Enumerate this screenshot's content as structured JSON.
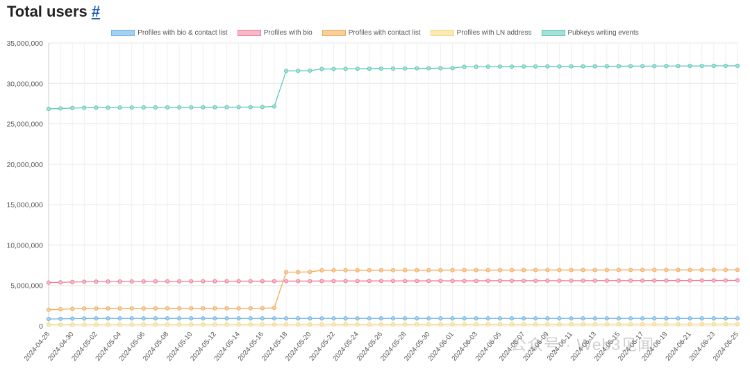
{
  "heading": {
    "title": "Total users",
    "anchor": "#"
  },
  "watermark": "公众号 · Web3见闻",
  "chart_data": {
    "type": "line",
    "title": "",
    "xlabel": "",
    "ylabel": "",
    "ylim": [
      0,
      35000000
    ],
    "yticks": [
      0,
      5000000,
      10000000,
      15000000,
      20000000,
      25000000,
      30000000,
      35000000
    ],
    "ytick_labels": [
      "0",
      "5,000,000",
      "10,000,000",
      "15,000,000",
      "20,000,000",
      "25,000,000",
      "30,000,000",
      "35,000,000"
    ],
    "x_tick_labels": [
      "2024-04-28",
      "2024-04-30",
      "2024-05-02",
      "2024-05-04",
      "2024-05-06",
      "2024-05-08",
      "2024-05-10",
      "2024-05-12",
      "2024-05-14",
      "2024-05-16",
      "2024-05-18",
      "2024-05-20",
      "2024-05-22",
      "2024-05-24",
      "2024-05-26",
      "2024-05-28",
      "2024-05-30",
      "2024-06-01",
      "2024-06-03",
      "2024-06-05",
      "2024-06-07",
      "2024-06-09",
      "2024-06-11",
      "2024-06-13",
      "2024-06-15",
      "2024-06-17",
      "2024-06-19",
      "2024-06-21",
      "2024-06-23",
      "2024-06-25"
    ],
    "categories": [
      "2024-04-28",
      "2024-04-29",
      "2024-04-30",
      "2024-05-01",
      "2024-05-02",
      "2024-05-03",
      "2024-05-04",
      "2024-05-05",
      "2024-05-06",
      "2024-05-07",
      "2024-05-08",
      "2024-05-09",
      "2024-05-10",
      "2024-05-11",
      "2024-05-12",
      "2024-05-13",
      "2024-05-14",
      "2024-05-15",
      "2024-05-16",
      "2024-05-17",
      "2024-05-18",
      "2024-05-19",
      "2024-05-20",
      "2024-05-21",
      "2024-05-22",
      "2024-05-23",
      "2024-05-24",
      "2024-05-25",
      "2024-05-26",
      "2024-05-27",
      "2024-05-28",
      "2024-05-29",
      "2024-05-30",
      "2024-05-31",
      "2024-06-01",
      "2024-06-02",
      "2024-06-03",
      "2024-06-04",
      "2024-06-05",
      "2024-06-06",
      "2024-06-07",
      "2024-06-08",
      "2024-06-09",
      "2024-06-10",
      "2024-06-11",
      "2024-06-12",
      "2024-06-13",
      "2024-06-14",
      "2024-06-15",
      "2024-06-16",
      "2024-06-17",
      "2024-06-18",
      "2024-06-19",
      "2024-06-20",
      "2024-06-21",
      "2024-06-22",
      "2024-06-23",
      "2024-06-24",
      "2024-06-25"
    ],
    "series": [
      {
        "name": "Profiles with bio & contact list",
        "color": "#6fb4e6",
        "fill": "#a6d0f0",
        "values": [
          850000,
          870000,
          900000,
          910000,
          920000,
          920000,
          920000,
          920000,
          920000,
          920000,
          920000,
          920000,
          920000,
          920000,
          920000,
          920000,
          920000,
          920000,
          920000,
          920000,
          920000,
          920000,
          920000,
          920000,
          920000,
          920000,
          920000,
          920000,
          920000,
          920000,
          920000,
          920000,
          920000,
          920000,
          920000,
          920000,
          920000,
          920000,
          920000,
          920000,
          920000,
          920000,
          920000,
          920000,
          920000,
          920000,
          920000,
          920000,
          920000,
          920000,
          920000,
          920000,
          920000,
          920000,
          920000,
          920000,
          920000,
          920000,
          920000
        ]
      },
      {
        "name": "Profiles with bio",
        "color": "#ee7c97",
        "fill": "#f8b8c8",
        "values": [
          5350000,
          5380000,
          5420000,
          5450000,
          5470000,
          5480000,
          5490000,
          5500000,
          5500000,
          5510000,
          5510000,
          5510000,
          5520000,
          5520000,
          5520000,
          5520000,
          5530000,
          5530000,
          5530000,
          5530000,
          5540000,
          5540000,
          5540000,
          5550000,
          5550000,
          5550000,
          5550000,
          5560000,
          5560000,
          5560000,
          5560000,
          5560000,
          5570000,
          5570000,
          5570000,
          5570000,
          5570000,
          5580000,
          5580000,
          5580000,
          5580000,
          5580000,
          5590000,
          5590000,
          5590000,
          5590000,
          5600000,
          5600000,
          5600000,
          5600000,
          5600000,
          5610000,
          5610000,
          5610000,
          5610000,
          5620000,
          5620000,
          5620000,
          5630000
        ]
      },
      {
        "name": "Profiles with contact list",
        "color": "#f2a95b",
        "fill": "#f8cf9c",
        "values": [
          2000000,
          2050000,
          2100000,
          2150000,
          2150000,
          2160000,
          2160000,
          2160000,
          2160000,
          2160000,
          2170000,
          2170000,
          2170000,
          2170000,
          2170000,
          2170000,
          2170000,
          2180000,
          2180000,
          2230000,
          6650000,
          6650000,
          6680000,
          6870000,
          6880000,
          6880000,
          6880000,
          6890000,
          6890000,
          6890000,
          6890000,
          6890000,
          6890000,
          6890000,
          6900000,
          6900000,
          6900000,
          6900000,
          6900000,
          6900000,
          6900000,
          6910000,
          6910000,
          6910000,
          6910000,
          6910000,
          6910000,
          6910000,
          6920000,
          6920000,
          6920000,
          6920000,
          6920000,
          6920000,
          6920000,
          6930000,
          6930000,
          6930000,
          6930000
        ]
      },
      {
        "name": "Profiles with LN address",
        "color": "#f5d77a",
        "fill": "#fbeab8",
        "values": [
          150000,
          150000,
          160000,
          160000,
          160000,
          160000,
          160000,
          160000,
          170000,
          170000,
          170000,
          170000,
          170000,
          170000,
          170000,
          170000,
          180000,
          180000,
          180000,
          180000,
          180000,
          180000,
          180000,
          180000,
          190000,
          190000,
          190000,
          190000,
          190000,
          190000,
          190000,
          190000,
          190000,
          200000,
          200000,
          200000,
          200000,
          200000,
          200000,
          200000,
          200000,
          200000,
          200000,
          200000,
          210000,
          210000,
          210000,
          210000,
          210000,
          210000,
          210000,
          210000,
          210000,
          210000,
          210000,
          220000,
          220000,
          220000,
          220000
        ]
      },
      {
        "name": "Pubkeys writing events",
        "color": "#5cc7b9",
        "fill": "#a6e0d8",
        "values": [
          26850000,
          26900000,
          26950000,
          26980000,
          27000000,
          27000000,
          27010000,
          27020000,
          27020000,
          27030000,
          27030000,
          27040000,
          27040000,
          27050000,
          27050000,
          27060000,
          27060000,
          27070000,
          27080000,
          27150000,
          31550000,
          31560000,
          31580000,
          31780000,
          31790000,
          31800000,
          31810000,
          31820000,
          31830000,
          31840000,
          31850000,
          31860000,
          31870000,
          31880000,
          31890000,
          32050000,
          32060000,
          32070000,
          32080000,
          32080000,
          32090000,
          32090000,
          32100000,
          32100000,
          32110000,
          32110000,
          32120000,
          32120000,
          32130000,
          32130000,
          32140000,
          32140000,
          32150000,
          32150000,
          32160000,
          32160000,
          32170000,
          32170000,
          32180000
        ]
      }
    ]
  }
}
